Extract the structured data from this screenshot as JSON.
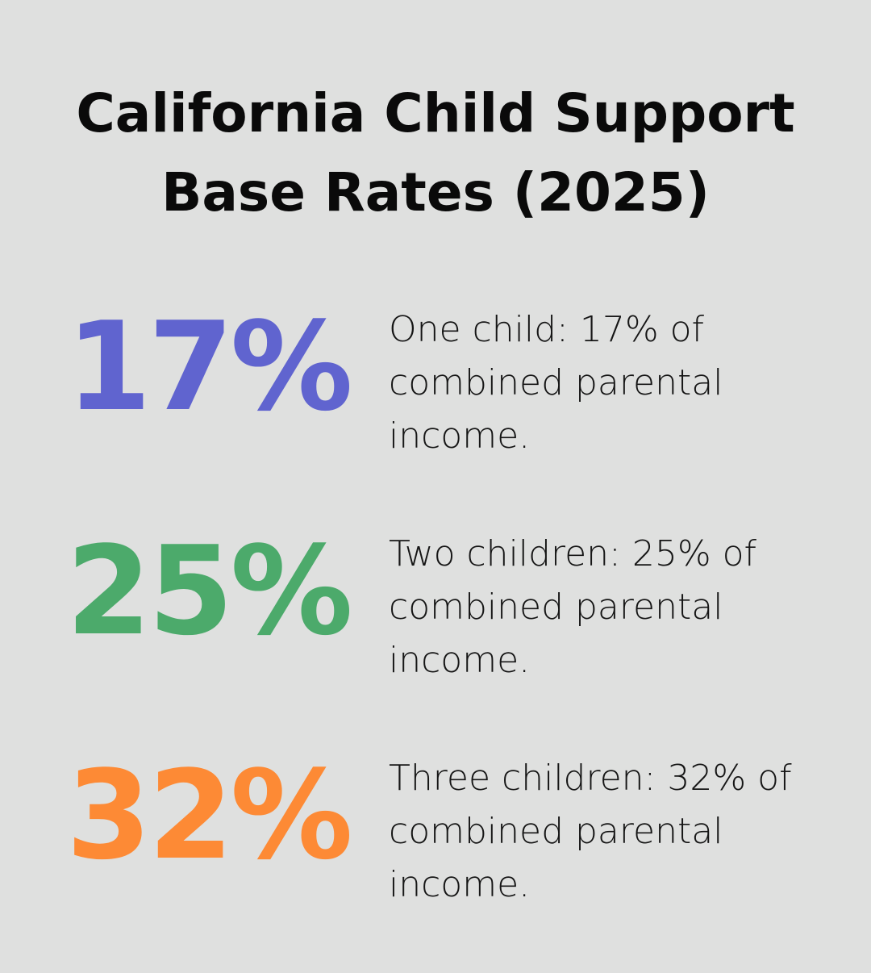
{
  "title": {
    "line1": "California Child Support",
    "line2": "Base Rates (2025)"
  },
  "stats": [
    {
      "value": "17%",
      "color": "#6064cf",
      "description": "One child: 17% of combined parental income."
    },
    {
      "value": "25%",
      "color": "#4caa6b",
      "description": "Two children: 25% of combined parental income."
    },
    {
      "value": "32%",
      "color": "#fd8a35",
      "description": "Three children: 32% of combined parental income."
    }
  ]
}
